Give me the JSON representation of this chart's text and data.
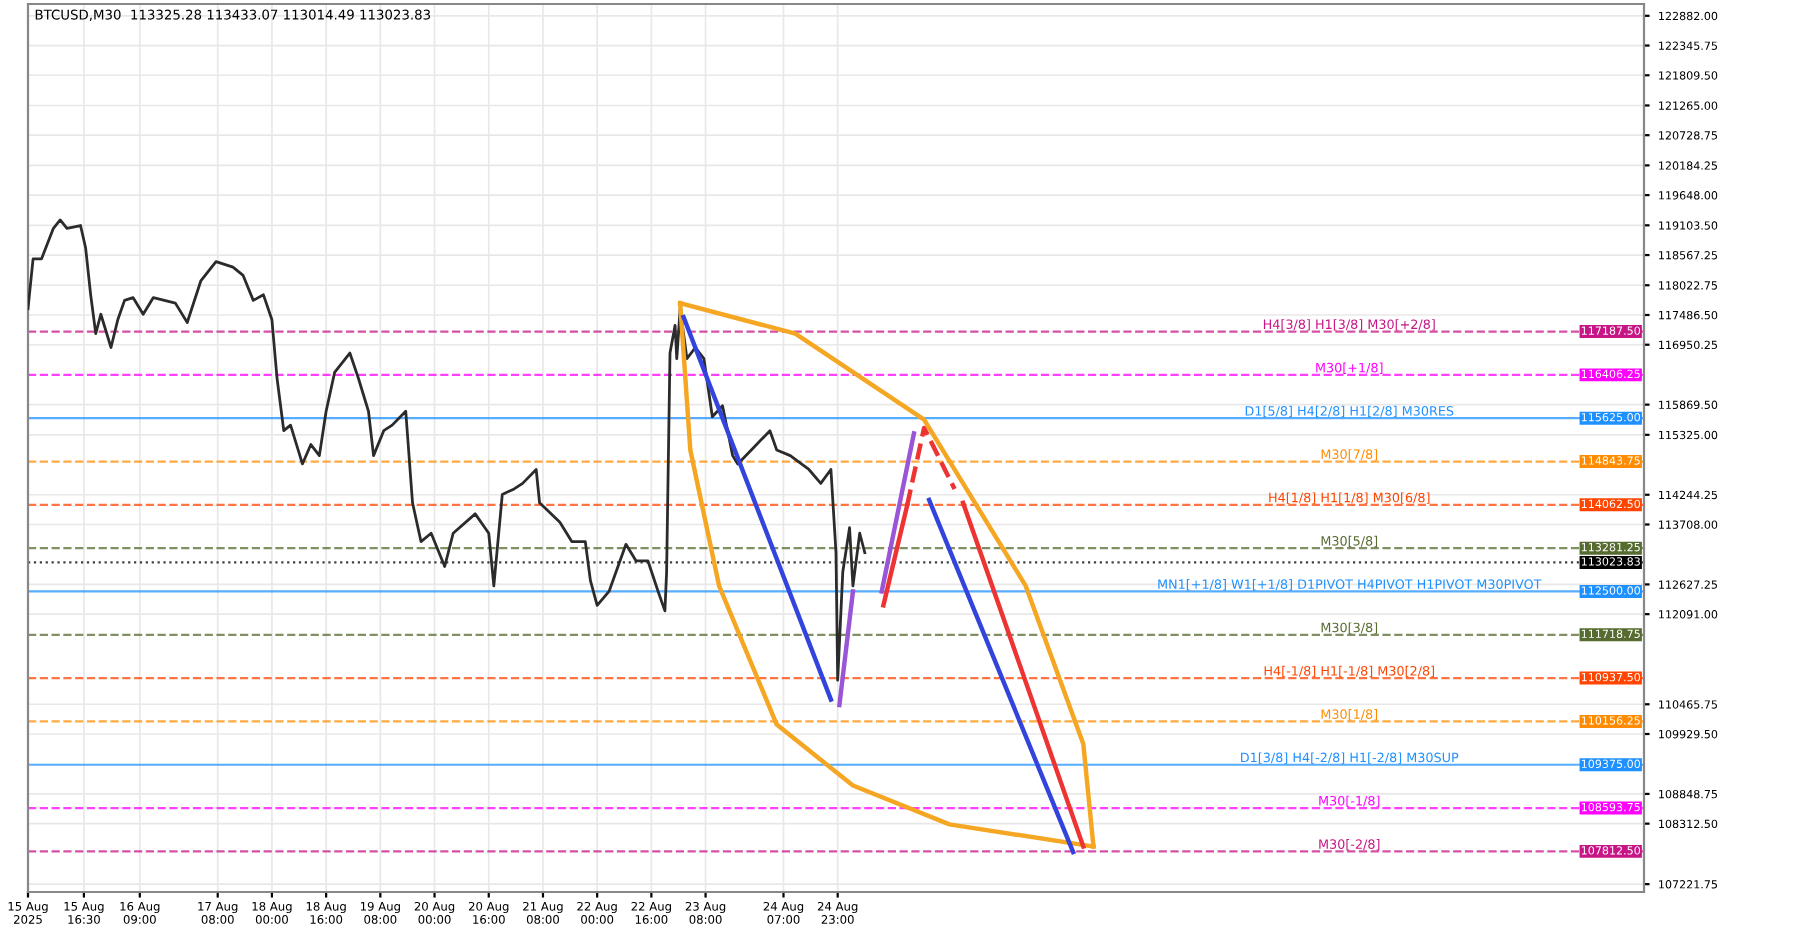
{
  "chart_data": {
    "type": "line",
    "title": "BTCUSD,M30  113325.28 113433.07 113014.49 113023.83",
    "xlim": [
      "2025-08-15T00:00",
      "2025-09-03T21:00"
    ],
    "ylim": [
      107080,
      123095
    ],
    "xticks": [
      {
        "value": "2025-08-15T00:00",
        "label": "15 Aug 2025"
      },
      {
        "value": "2025-08-15T16:30",
        "label": "15 Aug 16:30"
      },
      {
        "value": "2025-08-16T09:00",
        "label": "16 Aug 09:00"
      },
      {
        "value": "2025-08-17T08:00",
        "label": "17 Aug 08:00"
      },
      {
        "value": "2025-08-18T00:00",
        "label": "18 Aug 00:00"
      },
      {
        "value": "2025-08-18T16:00",
        "label": "18 Aug 16:00"
      },
      {
        "value": "2025-08-19T08:00",
        "label": "19 Aug 08:00"
      },
      {
        "value": "2025-08-20T00:00",
        "label": "20 Aug 00:00"
      },
      {
        "value": "2025-08-20T16:00",
        "label": "20 Aug 16:00"
      },
      {
        "value": "2025-08-21T08:00",
        "label": "21 Aug 08:00"
      },
      {
        "value": "2025-08-22T00:00",
        "label": "22 Aug 00:00"
      },
      {
        "value": "2025-08-22T16:00",
        "label": "22 Aug 16:00"
      },
      {
        "value": "2025-08-23T08:00",
        "label": "23 Aug 08:00"
      },
      {
        "value": "2025-08-24T07:00",
        "label": "24 Aug 07:00"
      },
      {
        "value": "2025-08-24T23:00",
        "label": "24 Aug 23:00"
      }
    ],
    "yticks": [
      {
        "value": 122882.0,
        "label": "122882.00"
      },
      {
        "value": 122345.75,
        "label": "122345.75"
      },
      {
        "value": 121809.5,
        "label": "121809.50"
      },
      {
        "value": 121265.0,
        "label": "121265.00"
      },
      {
        "value": 120728.75,
        "label": "120728.75"
      },
      {
        "value": 120184.25,
        "label": "120184.25"
      },
      {
        "value": 119648.0,
        "label": "119648.00"
      },
      {
        "value": 119103.5,
        "label": "119103.50"
      },
      {
        "value": 118567.25,
        "label": "118567.25"
      },
      {
        "value": 118022.75,
        "label": "118022.75"
      },
      {
        "value": 117486.5,
        "label": "117486.50"
      },
      {
        "value": 116950.25,
        "label": "116950.25"
      },
      {
        "value": 115869.5,
        "label": "115869.50"
      },
      {
        "value": 115325.0,
        "label": "115325.00"
      },
      {
        "value": 114244.25,
        "label": "114244.25"
      },
      {
        "value": 113708.0,
        "label": "113708.00"
      },
      {
        "value": 112627.25,
        "label": "112627.25"
      },
      {
        "value": 112091.0,
        "label": "112091.00"
      },
      {
        "value": 110465.75,
        "label": "110465.75"
      },
      {
        "value": 109929.5,
        "label": "109929.50"
      },
      {
        "value": 108848.75,
        "label": "108848.75"
      },
      {
        "value": 108312.5,
        "label": "108312.50"
      },
      {
        "value": 107221.75,
        "label": "107221.75"
      }
    ],
    "annotations": [
      {
        "text": "H4[3/8] H1[3/8] M30[+2/8]",
        "x": "2025-08-31T06:00",
        "y": 117187.5
      },
      {
        "text": "M30[+1/8]",
        "x": "2025-08-31T06:00",
        "y": 116406.25
      },
      {
        "text": "D1[5/8] H4[2/8] H1[2/8] M30RES",
        "x": "2025-08-31T06:00",
        "y": 115625.0
      },
      {
        "text": "M30[7/8]",
        "x": "2025-08-31T06:00",
        "y": 114843.75
      },
      {
        "text": "H4[1/8] H1[1/8] M30[6/8]",
        "x": "2025-08-31T06:00",
        "y": 114062.5
      },
      {
        "text": "M30[5/8]",
        "x": "2025-08-31T06:00",
        "y": 113281.25
      },
      {
        "text": "MN1[+1/8] W1[+1/8] D1PIVOT H4PIVOT H1PIVOT M30PIVOT",
        "x": "2025-08-31T06:00",
        "y": 112500.0
      },
      {
        "text": "M30[3/8]",
        "x": "2025-08-31T06:00",
        "y": 111718.75
      },
      {
        "text": "H4[-1/8] H1[-1/8] M30[2/8]",
        "x": "2025-08-31T06:00",
        "y": 110937.5
      },
      {
        "text": "M30[1/8]",
        "x": "2025-08-31T06:00",
        "y": 110156.25
      },
      {
        "text": "D1[3/8] H4[-2/8] H1[-2/8] M30SUP",
        "x": "2025-08-31T06:00",
        "y": 109375.0
      },
      {
        "text": "M30[-1/8]",
        "x": "2025-08-31T06:00",
        "y": 108593.75
      },
      {
        "text": "M30[-2/8]",
        "x": "2025-08-31T06:00",
        "y": 107812.5
      }
    ],
    "grid": true,
    "series": [
      {
        "color": "#2b2b2b",
        "x": [
          "2025-08-15T00:00",
          "2025-08-15T01:30",
          "2025-08-15T04:00",
          "2025-08-15T07:30",
          "2025-08-15T09:30",
          "2025-08-15T11:30",
          "2025-08-15T15:30",
          "2025-08-15T17:00",
          "2025-08-15T18:30",
          "2025-08-15T20:00",
          "2025-08-15T21:30",
          "2025-08-16T00:30",
          "2025-08-16T02:30",
          "2025-08-16T04:30",
          "2025-08-16T07:00",
          "2025-08-16T10:00",
          "2025-08-16T13:00",
          "2025-08-16T19:30",
          "2025-08-16T23:00",
          "2025-08-17T03:00",
          "2025-08-17T07:30",
          "2025-08-17T12:30",
          "2025-08-17T15:30",
          "2025-08-17T18:30",
          "2025-08-17T21:30",
          "2025-08-18T00:00",
          "2025-08-18T01:30",
          "2025-08-18T03:30",
          "2025-08-18T05:30",
          "2025-08-18T09:00",
          "2025-08-18T11:30",
          "2025-08-18T14:00",
          "2025-08-18T16:00",
          "2025-08-18T18:30",
          "2025-08-18T23:00",
          "2025-08-19T01:30",
          "2025-08-19T04:30",
          "2025-08-19T06:00",
          "2025-08-19T09:00",
          "2025-08-19T11:30",
          "2025-08-19T15:30",
          "2025-08-19T17:30",
          "2025-08-19T20:00",
          "2025-08-19T23:00",
          "2025-08-20T03:00",
          "2025-08-20T05:30",
          "2025-08-20T12:00",
          "2025-08-20T16:00",
          "2025-08-20T17:30",
          "2025-08-20T20:00",
          "2025-08-20T23:30",
          "2025-08-21T02:00",
          "2025-08-21T06:00",
          "2025-08-21T07:00",
          "2025-08-21T13:00",
          "2025-08-21T16:30",
          "2025-08-21T20:30",
          "2025-08-21T22:00",
          "2025-08-22T00:00",
          "2025-08-22T03:30",
          "2025-08-22T08:30",
          "2025-08-22T11:30",
          "2025-08-22T15:00",
          "2025-08-22T18:00",
          "2025-08-22T20:00",
          "2025-08-22T20:30",
          "2025-08-22T21:30",
          "2025-08-22T23:00",
          "2025-08-22T23:30",
          "2025-08-23T00:30",
          "2025-08-23T02:30",
          "2025-08-23T05:00",
          "2025-08-23T07:30",
          "2025-08-23T10:00",
          "2025-08-23T13:00",
          "2025-08-23T16:00",
          "2025-08-23T17:30",
          "2025-08-23T21:30",
          "2025-08-24T03:00",
          "2025-08-24T05:00",
          "2025-08-24T09:00",
          "2025-08-24T14:30",
          "2025-08-24T18:00",
          "2025-08-24T21:00",
          "2025-08-24T22:30",
          "2025-08-24T23:00",
          "2025-08-25T00:30",
          "2025-08-25T02:30",
          "2025-08-25T03:30",
          "2025-08-25T05:30",
          "2025-08-25T07:00"
        ],
        "values": [
          117600,
          118500,
          118500,
          119050,
          119200,
          119050,
          119100,
          118700,
          117850,
          117150,
          117500,
          116900,
          117400,
          117750,
          117800,
          117500,
          117800,
          117700,
          117350,
          118100,
          118450,
          118350,
          118200,
          117750,
          117850,
          117400,
          116350,
          115400,
          115500,
          114800,
          115150,
          114950,
          115750,
          116450,
          116800,
          116350,
          115750,
          114950,
          115400,
          115500,
          115750,
          114100,
          113400,
          113550,
          112950,
          113550,
          113900,
          113550,
          112600,
          114250,
          114350,
          114450,
          114700,
          114100,
          113750,
          113400,
          113400,
          112700,
          112250,
          112500,
          113350,
          113050,
          113050,
          112500,
          112150,
          112850,
          116800,
          117300,
          116700,
          117600,
          116700,
          116900,
          116700,
          115650,
          115850,
          114950,
          114800,
          115050,
          115400,
          115050,
          114950,
          114700,
          114450,
          114700,
          113200,
          110900,
          112850,
          113650,
          112600,
          113550,
          113200
        ]
      },
      {
        "color": "#f5a623",
        "x": [
          "2025-08-23T00:30",
          "2025-08-24T10:30",
          "2025-08-26T00:30",
          "2025-08-27T06:30",
          "2025-08-27T23:30",
          "2025-08-28T02:30"
        ],
        "values": [
          117700,
          117150,
          115600,
          112600,
          109750,
          107900
        ]
      },
      {
        "color": "#f5a623",
        "x": [
          "2025-08-23T00:30",
          "2025-08-23T03:30",
          "2025-08-23T12:00",
          "2025-08-24T05:00",
          "2025-08-25T03:30",
          "2025-08-26T08:00",
          "2025-08-28T02:30"
        ],
        "values": [
          117700,
          115050,
          112600,
          110100,
          109000,
          108300,
          107900
        ]
      },
      {
        "color": "#3344dd",
        "x": [
          "2025-08-23T01:30",
          "2025-08-24T21:00"
        ],
        "values": [
          117450,
          110550
        ]
      },
      {
        "color": "#9a55d6",
        "x": [
          "2025-08-24T23:30",
          "2025-08-25T03:30"
        ],
        "values": [
          110450,
          112500
        ]
      },
      {
        "color": "#9a55d6",
        "x": [
          "2025-08-25T12:00",
          "2025-08-25T21:30"
        ],
        "values": [
          112500,
          115350
        ]
      },
      {
        "color": "#ee3333",
        "x": [
          "2025-08-25T12:30",
          "2025-08-25T19:30"
        ],
        "values": [
          112250,
          114050
        ]
      },
      {
        "color": "#ee3333",
        "line_style": "dashed",
        "x": [
          "2025-08-25T19:30",
          "2025-08-26T00:30",
          "2025-08-26T09:30"
        ],
        "values": [
          114050,
          115450,
          114350
        ]
      },
      {
        "color": "#3344dd",
        "x": [
          "2025-08-26T02:00",
          "2025-08-27T20:30"
        ],
        "values": [
          114150,
          107800
        ]
      },
      {
        "color": "#ee3333",
        "x": [
          "2025-08-26T12:00",
          "2025-08-27T23:30"
        ],
        "values": [
          114100,
          107900
        ]
      }
    ],
    "ref_lines": [
      {
        "axis": "y",
        "value": 117187.5,
        "label": "117187.50",
        "color": "#c71585",
        "line_style": "dashed"
      },
      {
        "axis": "y",
        "value": 116406.25,
        "label": "116406.25",
        "color": "#ff00ff",
        "line_style": "dashed"
      },
      {
        "axis": "y",
        "value": 115625.0,
        "label": "115625.00",
        "color": "#1e90ff",
        "line_style": "solid"
      },
      {
        "axis": "y",
        "value": 114843.75,
        "label": "114843.75",
        "color": "#ff8c00",
        "line_style": "dashed"
      },
      {
        "axis": "y",
        "value": 114062.5,
        "label": "114062.50",
        "color": "#ff4500",
        "line_style": "dashed"
      },
      {
        "axis": "y",
        "value": 113281.25,
        "label": "113281.25",
        "color": "#556b2f",
        "line_style": "dashed"
      },
      {
        "axis": "y",
        "value": 113023.83,
        "label": "113023.83",
        "color": "#000000",
        "line_style": "dotted"
      },
      {
        "axis": "y",
        "value": 112500.0,
        "label": "112500.00",
        "color": "#1e90ff",
        "line_style": "solid"
      },
      {
        "axis": "y",
        "value": 111718.75,
        "label": "111718.75",
        "color": "#556b2f",
        "line_style": "dashed"
      },
      {
        "axis": "y",
        "value": 110937.5,
        "label": "110937.50",
        "color": "#ff4500",
        "line_style": "dashed"
      },
      {
        "axis": "y",
        "value": 110156.25,
        "label": "110156.25",
        "color": "#ff8c00",
        "line_style": "dashed"
      },
      {
        "axis": "y",
        "value": 109375.0,
        "label": "109375.00",
        "color": "#1e90ff",
        "line_style": "solid"
      },
      {
        "axis": "y",
        "value": 108593.75,
        "label": "108593.75",
        "color": "#ff00ff",
        "line_style": "dashed"
      },
      {
        "axis": "y",
        "value": 107812.5,
        "label": "107812.50",
        "color": "#c71585",
        "line_style": "dashed"
      }
    ]
  }
}
